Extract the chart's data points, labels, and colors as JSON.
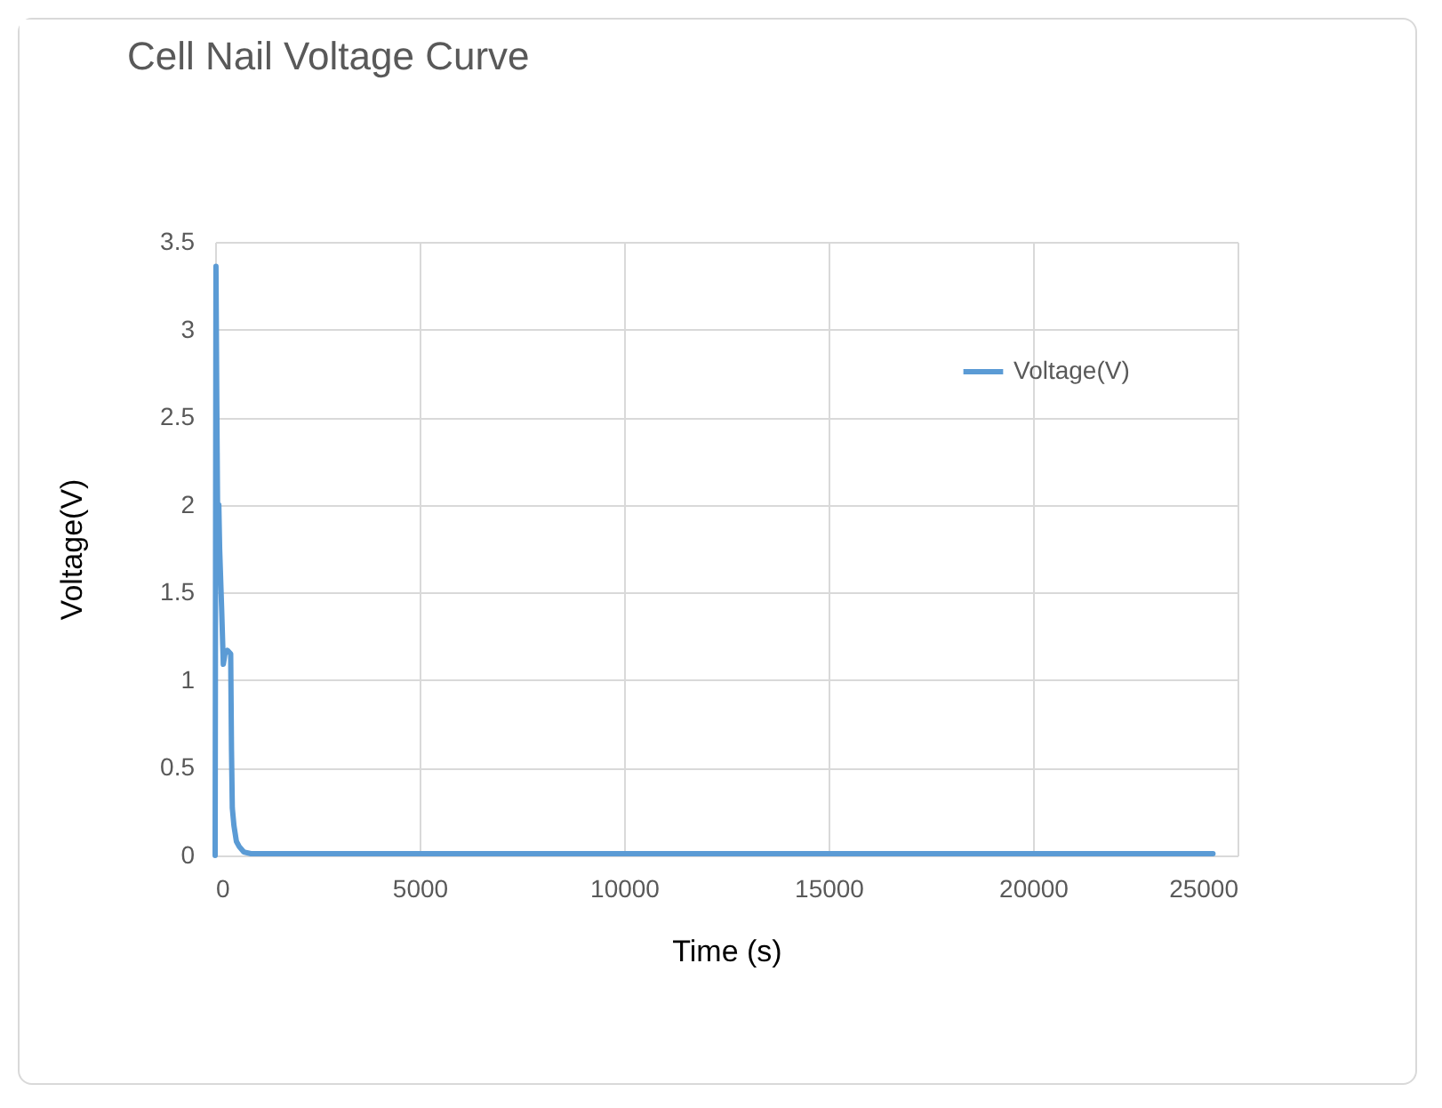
{
  "chart_data": {
    "type": "line",
    "title": "Cell Nail  Voltage Curve",
    "xlabel": "Time (s)",
    "ylabel": "Voltage(V)",
    "x": [
      0,
      20,
      40,
      70,
      90,
      110,
      160,
      200,
      240,
      300,
      380,
      400,
      420,
      460,
      520,
      590,
      700,
      875,
      1200,
      5000,
      10000,
      15000,
      20000,
      24400
    ],
    "series": [
      {
        "name": "Voltage(V)",
        "color": "#5b9bd5",
        "values": [
          0,
          3.36,
          2.6,
          1.63,
          2.0,
          1.75,
          1.4,
          1.09,
          1.15,
          1.17,
          1.15,
          0.6,
          0.27,
          0.17,
          0.08,
          0.05,
          0.02,
          0.01,
          0.01,
          0.01,
          0.01,
          0.01,
          0.01,
          0.01
        ]
      }
    ],
    "xlim": [
      0,
      25000
    ],
    "xticks": [
      0,
      5000,
      10000,
      15000,
      20000,
      25000
    ],
    "ylim": [
      0,
      3.5
    ],
    "yticks": [
      0,
      0.5,
      1,
      1.5,
      2,
      2.5,
      3,
      3.5
    ],
    "grid": true,
    "legend": "top right"
  }
}
